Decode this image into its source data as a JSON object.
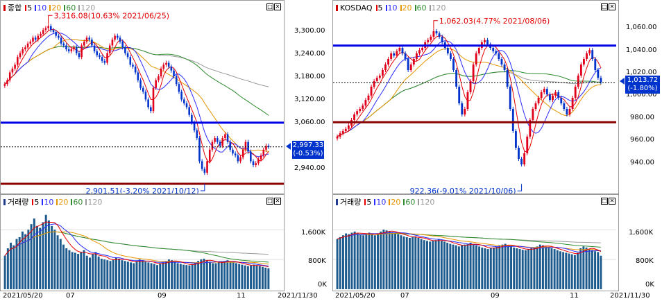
{
  "colors": {
    "up": "#e0001b",
    "down": "#0033cc",
    "vol": "#1d5a8e",
    "ma5": "#e60000",
    "ma10": "#2b2bff",
    "ma20": "#e69500",
    "ma60": "#2e8b2e",
    "ma120": "#9a9a9a",
    "support": "#8b0000",
    "resist": "#0000e6",
    "price_box": "#0033cc"
  },
  "left_price": {
    "title": "종합",
    "ma_labels": [
      "5",
      "10",
      "20",
      "60",
      "120"
    ],
    "y_ticks": [
      "3,300.00",
      "3,240.00",
      "3,180.00",
      "3,120.00",
      "3,060.00",
      "2,940.00"
    ],
    "current_price": "2,997.33",
    "current_change": "(-0.53%)",
    "high_annotation": "3,316.08(10.63% 2021/06/25)",
    "low_annotation": "2,901.51(-3.20% 2021/10/12)"
  },
  "right_price": {
    "title": "KOSDAQ",
    "ma_labels": [
      "5",
      "10",
      "20",
      "60",
      "120"
    ],
    "y_ticks": [
      "1,060.00",
      "1,040.00",
      "1,020.00",
      "1,000.00",
      "980.00",
      "960.00",
      "940.00"
    ],
    "current_price": "1,013.72",
    "current_change": "(-1.80%)",
    "high_annotation": "1,062.03(4.77% 2021/08/06)",
    "low_annotation": "922.36(-9.01% 2021/10/06)"
  },
  "left_volume": {
    "title": "거래량",
    "ma_labels": [
      "5",
      "10",
      "20",
      "60",
      "120"
    ],
    "y_ticks": [
      "1,600K",
      "800K",
      "0K"
    ]
  },
  "right_volume": {
    "title": "거래량",
    "ma_labels": [
      "5",
      "10",
      "20",
      "60",
      "120"
    ],
    "y_ticks": [
      "1,600K",
      "800K",
      "0K"
    ]
  },
  "left_x_axis": {
    "labels": [
      "2021/05/20",
      "07",
      "09",
      "11",
      "2021/11/30"
    ]
  },
  "right_x_axis": {
    "labels": [
      "2021/05/20",
      "07",
      "09",
      "11",
      "2021/11/30"
    ]
  },
  "chart_data": [
    {
      "type": "candlestick",
      "title": "종합",
      "ylim": [
        2880,
        3340
      ],
      "x_range": [
        "2021/05/20",
        "2021/11/30"
      ],
      "close_series": [
        3160,
        3170,
        3190,
        3200,
        3210,
        3230,
        3240,
        3250,
        3255,
        3265,
        3270,
        3280,
        3275,
        3285,
        3290,
        3300,
        3305,
        3310,
        3300,
        3295,
        3285,
        3280,
        3265,
        3260,
        3250,
        3245,
        3250,
        3255,
        3240,
        3230,
        3260,
        3270,
        3280,
        3275,
        3260,
        3245,
        3235,
        3230,
        3220,
        3215,
        3240,
        3260,
        3275,
        3285,
        3280,
        3270,
        3255,
        3240,
        3230,
        3210,
        3205,
        3190,
        3170,
        3150,
        3140,
        3120,
        3100,
        3090,
        3150,
        3170,
        3180,
        3200,
        3210,
        3215,
        3205,
        3195,
        3180,
        3160,
        3140,
        3120,
        3110,
        3100,
        3080,
        3060,
        3040,
        3020,
        2960,
        2940,
        2930,
        2960,
        2990,
        3010,
        3020,
        3010,
        3000,
        3020,
        3030,
        3010,
        2990,
        2980,
        2975,
        2960,
        2970,
        2990,
        3010,
        2985,
        2960,
        2950,
        2955,
        2965,
        2975,
        2990,
        3000,
        2997
      ],
      "support": 2901.51,
      "resistance": 3060.0,
      "dotted_level": 2997.33,
      "high": 3316.08,
      "low": 2901.51
    },
    {
      "type": "candlestick",
      "title": "KOSDAQ",
      "ylim": [
        915,
        1075
      ],
      "x_range": [
        "2021/05/20",
        "2021/11/30"
      ],
      "close_series": [
        965,
        968,
        970,
        972,
        975,
        980,
        985,
        988,
        990,
        993,
        998,
        1002,
        1010,
        1015,
        1018,
        1020,
        1025,
        1030,
        1035,
        1040,
        1038,
        1042,
        1045,
        1040,
        1035,
        1025,
        1030,
        1035,
        1040,
        1043,
        1045,
        1050,
        1052,
        1055,
        1060,
        1058,
        1055,
        1050,
        1045,
        1040,
        1035,
        1025,
        1010,
        995,
        985,
        990,
        1005,
        1015,
        1030,
        1040,
        1045,
        1050,
        1052,
        1048,
        1045,
        1042,
        1040,
        1035,
        1030,
        1025,
        1010,
        990,
        970,
        955,
        945,
        940,
        950,
        965,
        980,
        990,
        995,
        1000,
        1005,
        1008,
        1003,
        998,
        1002,
        1005,
        1000,
        995,
        990,
        985,
        990,
        1000,
        1010,
        1020,
        1030,
        1035,
        1040,
        1043,
        1035,
        1025,
        1018,
        1014
      ],
      "support": 978.0,
      "resistance": 1047.0,
      "dotted_level": 1013.72,
      "high": 1062.03,
      "low": 922.36
    },
    {
      "type": "bar",
      "title": "거래량",
      "ylim": [
        0,
        2200
      ],
      "values": [
        900,
        1100,
        1250,
        1180,
        1350,
        1400,
        1550,
        1480,
        1600,
        1750,
        1900,
        1700,
        1650,
        1800,
        2000,
        1850,
        1700,
        1600,
        1450,
        1350,
        1200,
        1100,
        1050,
        1000,
        980,
        950,
        1000,
        1050,
        900,
        850,
        950,
        1000,
        880,
        820,
        800,
        780,
        760,
        800,
        850,
        820,
        780,
        760,
        740,
        720,
        700,
        760,
        800,
        780,
        740,
        720,
        700,
        680,
        650,
        700,
        720,
        760,
        800,
        780,
        740,
        700,
        680,
        660,
        650,
        640,
        680,
        720,
        760,
        800,
        820,
        780,
        740,
        700,
        700,
        720,
        740,
        760,
        780,
        740,
        720,
        700,
        680,
        660,
        640,
        620,
        640,
        660,
        640,
        620,
        600,
        580,
        560
      ],
      "unit": "K"
    },
    {
      "type": "bar",
      "title": "거래량",
      "ylim": [
        0,
        2200
      ],
      "values": [
        1350,
        1400,
        1450,
        1500,
        1480,
        1520,
        1550,
        1500,
        1480,
        1450,
        1500,
        1520,
        1480,
        1450,
        1500,
        1550,
        1600,
        1580,
        1550,
        1520,
        1500,
        1480,
        1450,
        1420,
        1400,
        1380,
        1400,
        1420,
        1380,
        1350,
        1320,
        1300,
        1280,
        1300,
        1320,
        1350,
        1300,
        1280,
        1250,
        1220,
        1200,
        1180,
        1150,
        1180,
        1200,
        1220,
        1250,
        1200,
        1180,
        1150,
        1120,
        1100,
        1080,
        1100,
        1120,
        1150,
        1180,
        1200,
        1220,
        1180,
        1150,
        1120,
        1100,
        1080,
        1060,
        1050,
        1080,
        1100,
        1120,
        1150,
        1200,
        1180,
        1150,
        1120,
        1100,
        1080,
        1050,
        1020,
        1000,
        980,
        960,
        940,
        920,
        980,
        1100,
        1150,
        1120,
        1080,
        1050,
        1020,
        1000,
        900
      ],
      "unit": "K"
    }
  ]
}
